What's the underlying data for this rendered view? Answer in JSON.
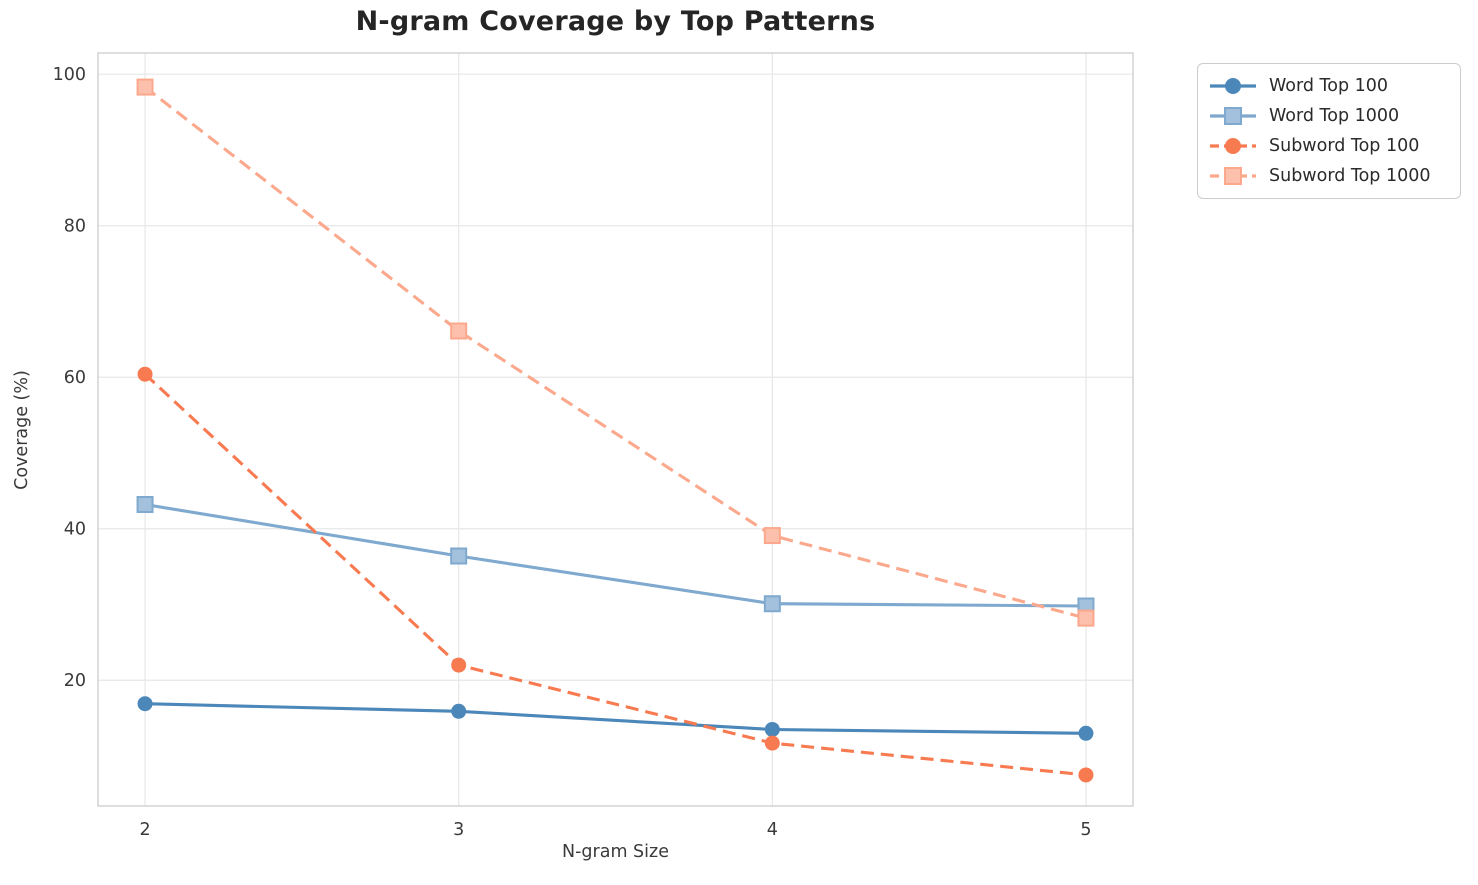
{
  "chart_data": {
    "type": "line",
    "title": "N-gram Coverage by Top Patterns",
    "xlabel": "N-gram Size",
    "ylabel": "Coverage (%)",
    "x": [
      2,
      3,
      4,
      5
    ],
    "xticks": [
      "2",
      "3",
      "4",
      "5"
    ],
    "yticks": [
      20,
      40,
      60,
      80,
      100
    ],
    "xlim": [
      1.85,
      5.15
    ],
    "ylim": [
      3.4,
      102.8
    ],
    "grid": true,
    "background_color": "#ffffff",
    "grid_color": "#e7e7e7",
    "spine_color": "#cfcfcf",
    "tick_label_color": "#3a3a3a",
    "title_color": "#252525",
    "legend_position": "outside-upper-right",
    "series": [
      {
        "name": "Word Top 100",
        "values": [
          16.9,
          15.9,
          13.5,
          13.0
        ],
        "color": "#4C87B9",
        "line_style": "solid",
        "marker": "circle"
      },
      {
        "name": "Word Top 1000",
        "values": [
          43.2,
          36.4,
          30.1,
          29.8
        ],
        "color": "#7FA9CE",
        "line_style": "solid",
        "marker": "square"
      },
      {
        "name": "Subword Top 100",
        "values": [
          60.4,
          22.0,
          11.7,
          7.5
        ],
        "color": "#F87A50",
        "line_style": "dashed",
        "marker": "circle"
      },
      {
        "name": "Subword Top 1000",
        "values": [
          98.3,
          66.1,
          39.1,
          28.2
        ],
        "color": "#FBA88C",
        "line_style": "dashed",
        "marker": "square"
      }
    ]
  }
}
